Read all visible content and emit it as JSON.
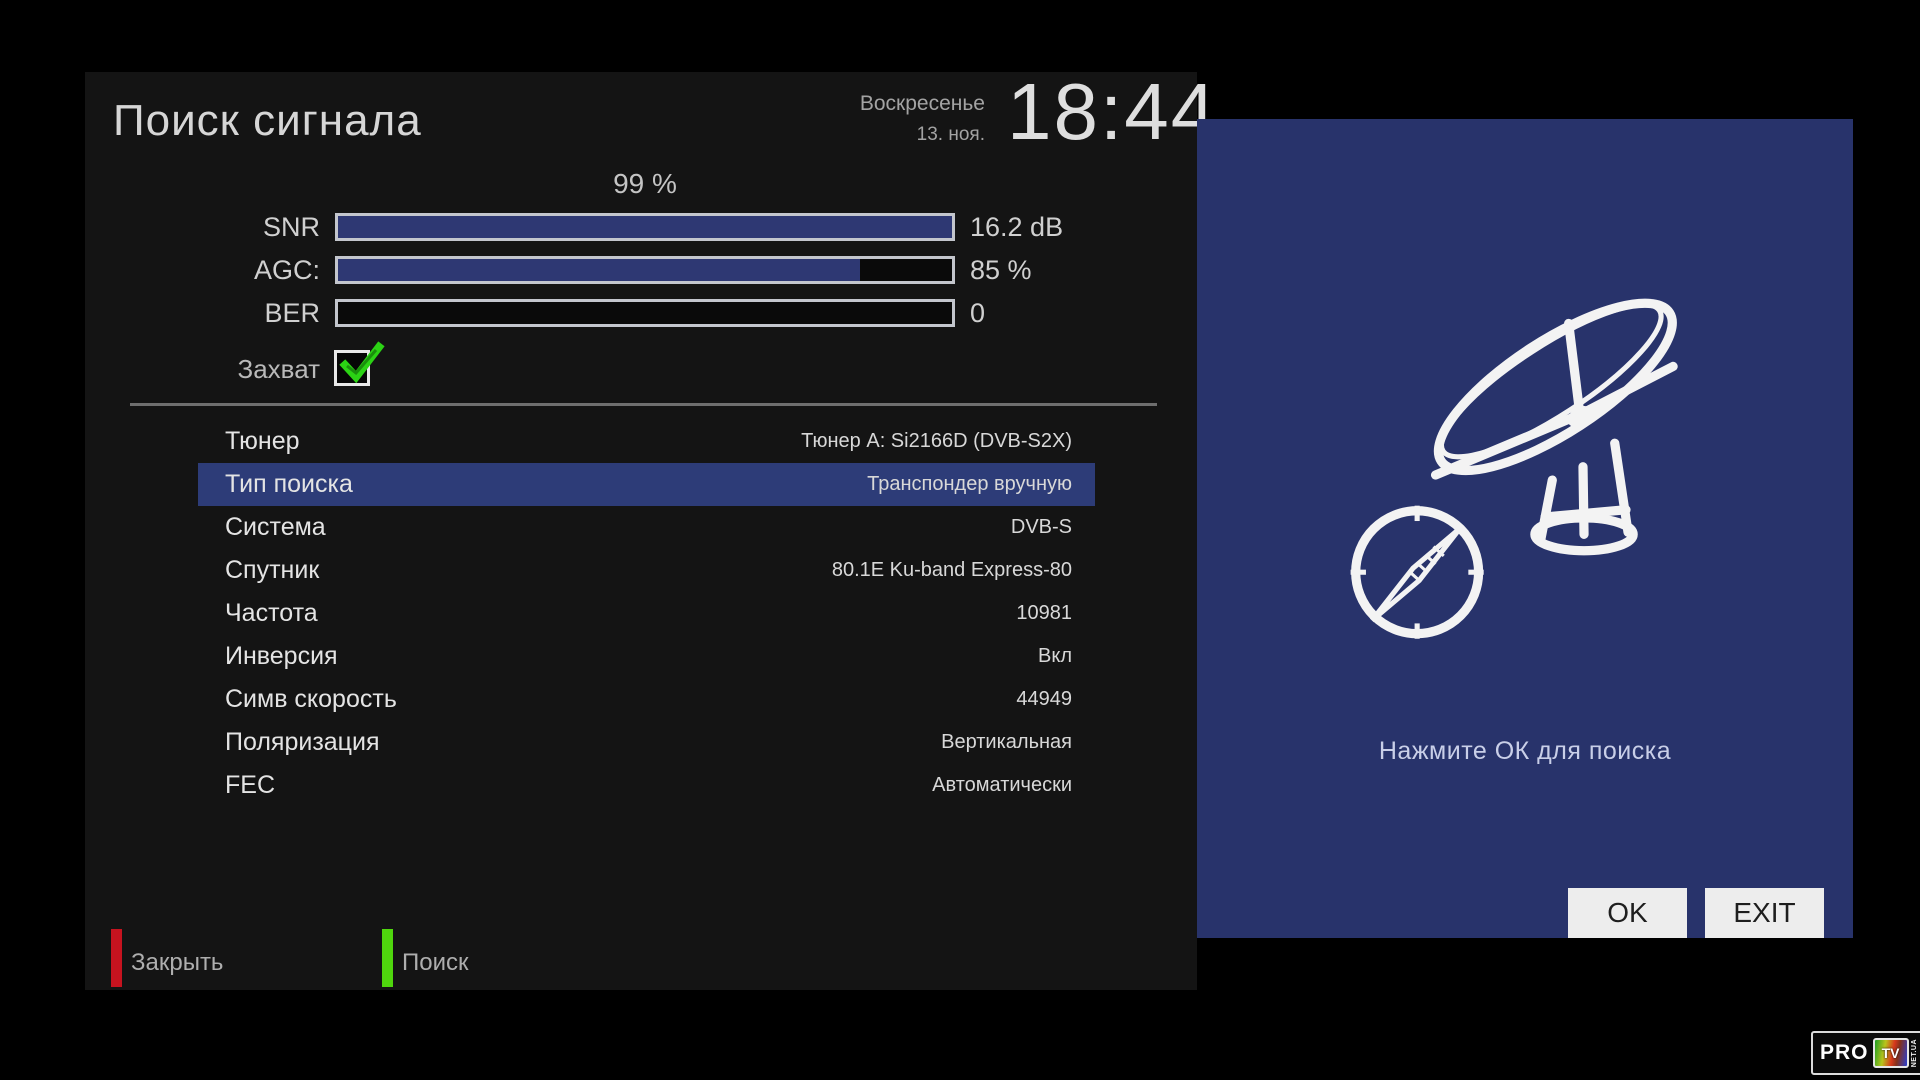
{
  "app": {
    "title": "Поиск сигнала"
  },
  "clock": {
    "weekday": "Воскресенье",
    "date": "13. ноя.",
    "time": "18:44"
  },
  "signal": {
    "quality_percent": "99 %",
    "bars": [
      {
        "label": "SNR",
        "value": "16.2 dB",
        "percent": 100
      },
      {
        "label": "AGC:",
        "value": "85 %",
        "percent": 85
      },
      {
        "label": "BER",
        "value": "0",
        "percent": 0
      }
    ],
    "lock": {
      "label": "Захват",
      "checked": true
    }
  },
  "settings": {
    "rows": [
      {
        "label": "Тюнер",
        "value": "Тюнер A: Si2166D (DVB-S2X)",
        "selected": false
      },
      {
        "label": "Тип поиска",
        "value": "Транспондер вручную",
        "selected": true
      },
      {
        "label": "Система",
        "value": "DVB-S",
        "selected": false
      },
      {
        "label": "Спутник",
        "value": "80.1E Ku-band Express-80",
        "selected": false
      },
      {
        "label": "Частота",
        "value": "10981",
        "selected": false
      },
      {
        "label": "Инверсия",
        "value": "Вкл",
        "selected": false
      },
      {
        "label": "Симв скорость",
        "value": "44949",
        "selected": false
      },
      {
        "label": "Поляризация",
        "value": "Вертикальная",
        "selected": false
      },
      {
        "label": "FEC",
        "value": "Автоматически",
        "selected": false
      }
    ]
  },
  "footer_keys": [
    {
      "label": "Закрыть",
      "color": "#c6131f"
    },
    {
      "label": "Поиск",
      "color": "#4fd60d"
    }
  ],
  "search_panel": {
    "message": "Нажмите ОК для поиска",
    "ok_button": "OK",
    "exit_button": "EXIT"
  },
  "logo": {
    "part1": "PRO",
    "part2": "TV",
    "part3": "NET.UA"
  },
  "colors": {
    "panel_blue": "#28336b",
    "highlight_row": "#2d3c78",
    "bar_fill": "#2e3873",
    "key_red": "#c6131f",
    "key_green": "#4fd60d",
    "check_green": "#2bd214"
  }
}
